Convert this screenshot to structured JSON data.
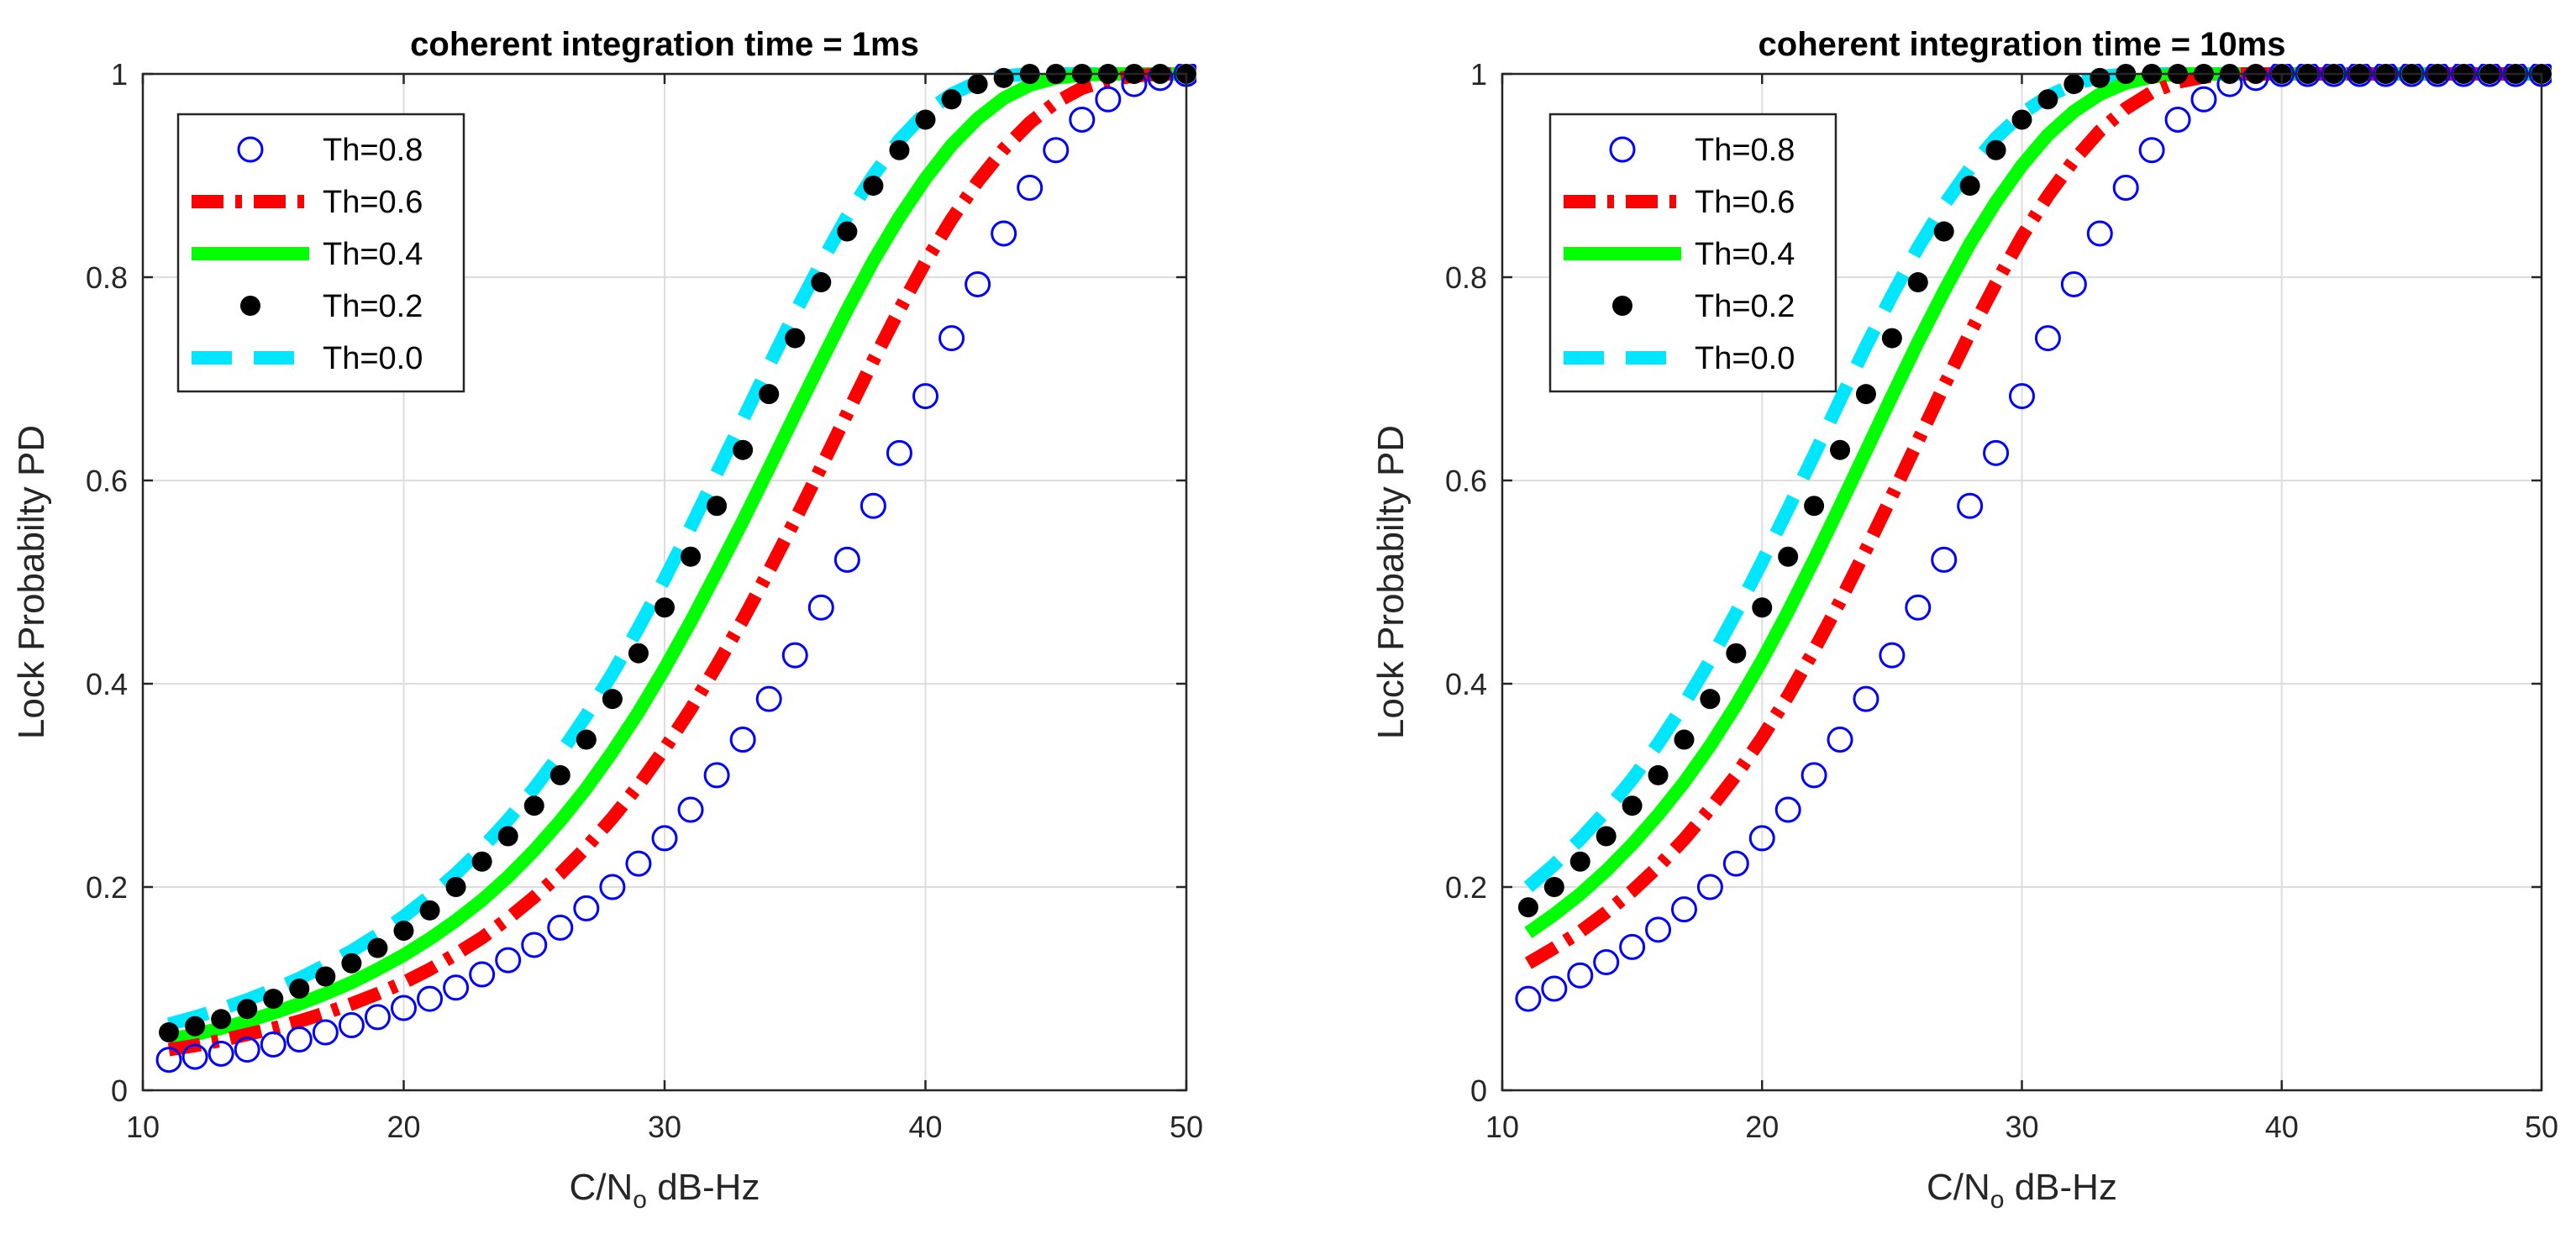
{
  "chart_data": [
    {
      "type": "line",
      "title": "coherent integration time = 1ms",
      "xlabel": "C/N",
      "xlabel_sub": "o",
      "xlabel_unit": " dB-Hz",
      "ylabel": "Lock Probabilty PD",
      "xlim": [
        10,
        50
      ],
      "ylim": [
        0,
        1
      ],
      "xticks": [
        "10",
        "20",
        "30",
        "40",
        "50"
      ],
      "yticks": [
        "0",
        "0.2",
        "0.4",
        "0.6",
        "0.8",
        "1"
      ],
      "grid": true,
      "legend_position": "top-left",
      "x": [
        11,
        12,
        13,
        14,
        15,
        16,
        17,
        18,
        19,
        20,
        21,
        22,
        23,
        24,
        25,
        26,
        27,
        28,
        29,
        30,
        31,
        32,
        33,
        34,
        35,
        36,
        37,
        38,
        39,
        40,
        41,
        42,
        43,
        44,
        45,
        46,
        47,
        48,
        49,
        50
      ],
      "series": [
        {
          "name": "Th=0.8",
          "style": "circle",
          "color": "#0000ff",
          "values": [
            0.03,
            0.033,
            0.036,
            0.04,
            0.045,
            0.05,
            0.057,
            0.064,
            0.072,
            0.081,
            0.09,
            0.101,
            0.114,
            0.128,
            0.143,
            0.16,
            0.179,
            0.2,
            0.223,
            0.248,
            0.276,
            0.31,
            0.345,
            0.385,
            0.428,
            0.475,
            0.522,
            0.575,
            0.627,
            0.683,
            0.74,
            0.793,
            0.843,
            0.888,
            0.925,
            0.955,
            0.975,
            0.99,
            0.996,
            1.0
          ]
        },
        {
          "name": "Th=0.6",
          "style": "dashdot",
          "color": "#ff0000",
          "values": [
            0.04,
            0.044,
            0.049,
            0.055,
            0.061,
            0.068,
            0.076,
            0.085,
            0.095,
            0.106,
            0.119,
            0.134,
            0.15,
            0.169,
            0.19,
            0.213,
            0.239,
            0.268,
            0.3,
            0.336,
            0.375,
            0.418,
            0.463,
            0.511,
            0.561,
            0.613,
            0.666,
            0.718,
            0.768,
            0.815,
            0.857,
            0.894,
            0.926,
            0.952,
            0.972,
            0.986,
            0.994,
            0.998,
            1.0,
            1.0
          ]
        },
        {
          "name": "Th=0.4",
          "style": "solid",
          "color": "#00ff00",
          "values": [
            0.05,
            0.055,
            0.061,
            0.068,
            0.076,
            0.085,
            0.095,
            0.106,
            0.119,
            0.133,
            0.149,
            0.167,
            0.187,
            0.21,
            0.236,
            0.265,
            0.297,
            0.333,
            0.372,
            0.415,
            0.461,
            0.51,
            0.56,
            0.612,
            0.665,
            0.717,
            0.768,
            0.816,
            0.859,
            0.897,
            0.93,
            0.956,
            0.976,
            0.989,
            0.996,
            0.999,
            1.0,
            1.0,
            1.0,
            1.0
          ]
        },
        {
          "name": "Th=0.2",
          "style": "dot",
          "color": "#000000",
          "values": [
            0.057,
            0.063,
            0.07,
            0.08,
            0.09,
            0.1,
            0.112,
            0.125,
            0.14,
            0.157,
            0.177,
            0.2,
            0.225,
            0.25,
            0.28,
            0.31,
            0.345,
            0.385,
            0.43,
            0.475,
            0.525,
            0.575,
            0.63,
            0.685,
            0.74,
            0.795,
            0.845,
            0.89,
            0.925,
            0.955,
            0.975,
            0.99,
            0.996,
            1.0,
            1.0,
            1.0,
            1.0,
            1.0,
            1.0,
            1.0
          ]
        },
        {
          "name": "Th=0.0",
          "style": "dashed",
          "color": "#00e6ff",
          "values": [
            0.065,
            0.072,
            0.08,
            0.089,
            0.099,
            0.11,
            0.123,
            0.137,
            0.153,
            0.171,
            0.191,
            0.213,
            0.238,
            0.266,
            0.297,
            0.331,
            0.369,
            0.41,
            0.455,
            0.503,
            0.554,
            0.607,
            0.66,
            0.713,
            0.765,
            0.814,
            0.86,
            0.9,
            0.935,
            0.962,
            0.98,
            0.992,
            0.998,
            1.0,
            1.0,
            1.0,
            1.0,
            1.0,
            1.0,
            1.0
          ]
        }
      ]
    },
    {
      "type": "line",
      "title": "coherent integration time = 10ms",
      "xlabel": "C/N",
      "xlabel_sub": "o",
      "xlabel_unit": " dB-Hz",
      "ylabel": "Lock Probabilty PD",
      "xlim": [
        10,
        50
      ],
      "ylim": [
        0,
        1
      ],
      "xticks": [
        "10",
        "20",
        "30",
        "40",
        "50"
      ],
      "yticks": [
        "0",
        "0.2",
        "0.4",
        "0.6",
        "0.8",
        "1"
      ],
      "grid": true,
      "legend_position": "top-left",
      "x": [
        11,
        12,
        13,
        14,
        15,
        16,
        17,
        18,
        19,
        20,
        21,
        22,
        23,
        24,
        25,
        26,
        27,
        28,
        29,
        30,
        31,
        32,
        33,
        34,
        35,
        36,
        37,
        38,
        39,
        40,
        41,
        42,
        43,
        44,
        45,
        46,
        47,
        48,
        49,
        50
      ],
      "series": [
        {
          "name": "Th=0.8",
          "style": "circle",
          "color": "#0000ff",
          "values": [
            0.09,
            0.1,
            0.113,
            0.126,
            0.141,
            0.158,
            0.178,
            0.2,
            0.223,
            0.248,
            0.276,
            0.31,
            0.345,
            0.385,
            0.428,
            0.475,
            0.522,
            0.575,
            0.627,
            0.683,
            0.74,
            0.793,
            0.843,
            0.888,
            0.925,
            0.955,
            0.975,
            0.99,
            0.996,
            1.0,
            1.0,
            1.0,
            1.0,
            1.0,
            1.0,
            1.0,
            1.0,
            1.0,
            1.0,
            1.0
          ]
        },
        {
          "name": "Th=0.6",
          "style": "dashdot",
          "color": "#ff0000",
          "values": [
            0.125,
            0.14,
            0.156,
            0.175,
            0.196,
            0.22,
            0.247,
            0.277,
            0.31,
            0.347,
            0.388,
            0.433,
            0.481,
            0.532,
            0.585,
            0.639,
            0.693,
            0.745,
            0.794,
            0.84,
            0.88,
            0.915,
            0.944,
            0.966,
            0.982,
            0.992,
            0.997,
            1.0,
            1.0,
            1.0,
            1.0,
            1.0,
            1.0,
            1.0,
            1.0,
            1.0,
            1.0,
            1.0,
            1.0,
            1.0
          ]
        },
        {
          "name": "Th=0.4",
          "style": "solid",
          "color": "#00ff00",
          "values": [
            0.155,
            0.173,
            0.193,
            0.216,
            0.242,
            0.271,
            0.303,
            0.339,
            0.379,
            0.423,
            0.471,
            0.522,
            0.575,
            0.629,
            0.683,
            0.736,
            0.786,
            0.833,
            0.874,
            0.91,
            0.94,
            0.963,
            0.98,
            0.991,
            0.997,
            1.0,
            1.0,
            1.0,
            1.0,
            1.0,
            1.0,
            1.0,
            1.0,
            1.0,
            1.0,
            1.0,
            1.0,
            1.0,
            1.0,
            1.0
          ]
        },
        {
          "name": "Th=0.2",
          "style": "dot",
          "color": "#000000",
          "values": [
            0.18,
            0.2,
            0.225,
            0.25,
            0.28,
            0.31,
            0.345,
            0.385,
            0.43,
            0.475,
            0.525,
            0.575,
            0.63,
            0.685,
            0.74,
            0.795,
            0.845,
            0.89,
            0.925,
            0.955,
            0.975,
            0.99,
            0.996,
            1.0,
            1.0,
            1.0,
            1.0,
            1.0,
            1.0,
            1.0,
            1.0,
            1.0,
            1.0,
            1.0,
            1.0,
            1.0,
            1.0,
            1.0,
            1.0,
            1.0
          ]
        },
        {
          "name": "Th=0.0",
          "style": "dashed",
          "color": "#00e6ff",
          "values": [
            0.2,
            0.222,
            0.247,
            0.275,
            0.306,
            0.341,
            0.38,
            0.423,
            0.47,
            0.52,
            0.572,
            0.625,
            0.679,
            0.732,
            0.782,
            0.829,
            0.871,
            0.907,
            0.937,
            0.961,
            0.978,
            0.99,
            0.997,
            1.0,
            1.0,
            1.0,
            1.0,
            1.0,
            1.0,
            1.0,
            1.0,
            1.0,
            1.0,
            1.0,
            1.0,
            1.0,
            1.0,
            1.0,
            1.0,
            1.0
          ]
        }
      ]
    }
  ]
}
